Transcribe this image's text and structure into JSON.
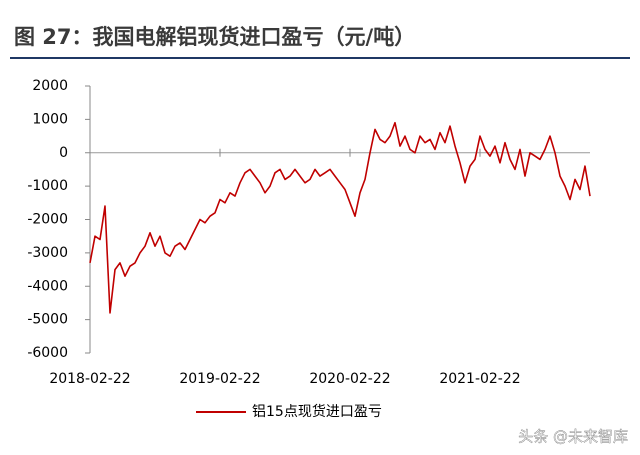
{
  "chart_data": {
    "type": "line",
    "title": "图 27：我国电解铝现货进口盈亏（元/吨）",
    "watermark": "头条 @未来智库",
    "categories": [
      "2018-02-22",
      null,
      null,
      null,
      null,
      null,
      null,
      null,
      null,
      null,
      null,
      null,
      null,
      null,
      null,
      null,
      null,
      null,
      null,
      null,
      null,
      null,
      null,
      null,
      null,
      null,
      "2019-02-22",
      null,
      null,
      null,
      null,
      null,
      null,
      null,
      null,
      null,
      null,
      null,
      null,
      null,
      null,
      null,
      null,
      null,
      null,
      null,
      null,
      null,
      null,
      null,
      null,
      null,
      "2020-02-22",
      null,
      null,
      null,
      null,
      null,
      null,
      null,
      null,
      null,
      null,
      null,
      null,
      null,
      null,
      null,
      null,
      null,
      null,
      null,
      null,
      null,
      null,
      null,
      null,
      null,
      "2021-02-22",
      null,
      null,
      null,
      null,
      null,
      null,
      null,
      null,
      null,
      null,
      null,
      null,
      null,
      null,
      null,
      null,
      null,
      null,
      null,
      null,
      null,
      null
    ],
    "series": [
      {
        "name": "铝15点现货进口盈亏",
        "color": "#c00000",
        "values": [
          -3300,
          -2500,
          -2600,
          -1600,
          -4800,
          -3500,
          -3300,
          -3700,
          -3400,
          -3300,
          -3000,
          -2800,
          -2400,
          -2800,
          -2500,
          -3000,
          -3100,
          -2800,
          -2700,
          -2900,
          -2600,
          -2300,
          -2000,
          -2100,
          -1900,
          -1800,
          -1400,
          -1500,
          -1200,
          -1300,
          -900,
          -600,
          -500,
          -700,
          -900,
          -1200,
          -1000,
          -600,
          -500,
          -800,
          -700,
          -500,
          -700,
          -900,
          -800,
          -500,
          -700,
          -600,
          -500,
          -700,
          -900,
          -1100,
          -1500,
          -1900,
          -1200,
          -800,
          0,
          700,
          400,
          300,
          500,
          900,
          200,
          500,
          100,
          0,
          500,
          300,
          400,
          100,
          600,
          300,
          800,
          200,
          -300,
          -900,
          -400,
          -200,
          500,
          100,
          -100,
          200,
          -300,
          300,
          -200,
          -500,
          100,
          -700,
          0,
          -100,
          -200,
          100,
          500,
          0,
          -700,
          -1000,
          -1400,
          -800,
          -1100,
          -400,
          -1300
        ]
      }
    ],
    "ylim": [
      -6000,
      2000
    ],
    "yticks": [
      2000,
      1000,
      0,
      -1000,
      -2000,
      -3000,
      -4000,
      -5000,
      -6000
    ],
    "zero_line": true
  }
}
